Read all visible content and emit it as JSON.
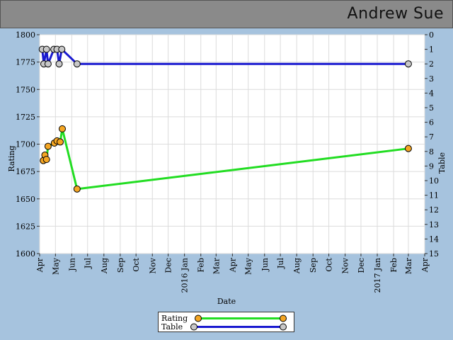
{
  "header": {
    "player_name": "Andrew Sue"
  },
  "colors": {
    "background": "#a6c3de",
    "rating_line": "#22dd22",
    "rating_marker": "#f5a623",
    "table_line": "#1a1ad0",
    "table_marker": "#c8c8c8"
  },
  "chart_data": {
    "type": "line",
    "xlabel": "Date",
    "ylabel_left": "Rating",
    "ylabel_right": "Table",
    "x_range": [
      "2015-04-01",
      "2017-04-01"
    ],
    "y_left_range": [
      1600,
      1800
    ],
    "y_right_range": [
      15,
      0
    ],
    "y_left_ticks": [
      1600,
      1625,
      1650,
      1675,
      1700,
      1725,
      1750,
      1775,
      1800
    ],
    "y_right_ticks": [
      0,
      1,
      2,
      3,
      4,
      5,
      6,
      7,
      8,
      9,
      10,
      11,
      12,
      13,
      14,
      15
    ],
    "x_ticks": [
      {
        "date": "2015-04-01",
        "label": "Apr"
      },
      {
        "date": "2015-05-01",
        "label": "May"
      },
      {
        "date": "2015-06-01",
        "label": "Jun"
      },
      {
        "date": "2015-07-01",
        "label": "Jul"
      },
      {
        "date": "2015-08-01",
        "label": "Aug"
      },
      {
        "date": "2015-09-01",
        "label": "Sep"
      },
      {
        "date": "2015-10-01",
        "label": "Oct"
      },
      {
        "date": "2015-11-01",
        "label": "Nov"
      },
      {
        "date": "2015-12-01",
        "label": "Dec"
      },
      {
        "date": "2016-01-01",
        "label": "2016 Jan"
      },
      {
        "date": "2016-02-01",
        "label": "Feb"
      },
      {
        "date": "2016-03-01",
        "label": "Mar"
      },
      {
        "date": "2016-04-01",
        "label": "Apr"
      },
      {
        "date": "2016-05-01",
        "label": "May"
      },
      {
        "date": "2016-06-01",
        "label": "Jun"
      },
      {
        "date": "2016-07-01",
        "label": "Jul"
      },
      {
        "date": "2016-08-01",
        "label": "Aug"
      },
      {
        "date": "2016-09-01",
        "label": "Sep"
      },
      {
        "date": "2016-10-01",
        "label": "Oct"
      },
      {
        "date": "2016-11-01",
        "label": "Nov"
      },
      {
        "date": "2016-12-01",
        "label": "Dec"
      },
      {
        "date": "2017-01-01",
        "label": "2017 Jan"
      },
      {
        "date": "2017-02-01",
        "label": "Feb"
      },
      {
        "date": "2017-03-01",
        "label": "Mar"
      },
      {
        "date": "2017-04-01",
        "label": "Apr"
      }
    ],
    "grid": true,
    "legend_position": "bottom-center",
    "series": [
      {
        "name": "Rating",
        "axis": "left",
        "points": [
          {
            "x": "2015-04-08",
            "y": 1685
          },
          {
            "x": "2015-04-11",
            "y": 1690
          },
          {
            "x": "2015-04-14",
            "y": 1686
          },
          {
            "x": "2015-04-17",
            "y": 1698
          },
          {
            "x": "2015-04-29",
            "y": 1701
          },
          {
            "x": "2015-05-04",
            "y": 1703
          },
          {
            "x": "2015-05-10",
            "y": 1702
          },
          {
            "x": "2015-05-14",
            "y": 1714
          },
          {
            "x": "2015-06-11",
            "y": 1659
          },
          {
            "x": "2017-03-01",
            "y": 1696
          }
        ]
      },
      {
        "name": "Table",
        "axis": "right",
        "points": [
          {
            "x": "2015-04-06",
            "y": 1
          },
          {
            "x": "2015-04-09",
            "y": 2
          },
          {
            "x": "2015-04-14",
            "y": 1
          },
          {
            "x": "2015-04-17",
            "y": 2
          },
          {
            "x": "2015-04-28",
            "y": 1
          },
          {
            "x": "2015-05-04",
            "y": 1
          },
          {
            "x": "2015-05-08",
            "y": 2
          },
          {
            "x": "2015-05-13",
            "y": 1
          },
          {
            "x": "2015-06-11",
            "y": 2
          },
          {
            "x": "2017-03-01",
            "y": 2
          }
        ]
      }
    ]
  }
}
